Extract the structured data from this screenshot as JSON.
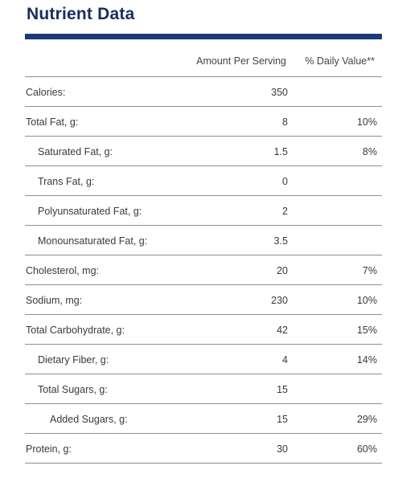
{
  "title": "Nutrient Data",
  "header": {
    "amount": "Amount Per Serving",
    "daily_value": "% Daily Value**"
  },
  "rows": [
    {
      "label": "Calories:",
      "amount": "350",
      "dv": "",
      "indent": 0
    },
    {
      "label": "Total Fat, g:",
      "amount": "8",
      "dv": "10%",
      "indent": 0
    },
    {
      "label": "Saturated Fat, g:",
      "amount": "1.5",
      "dv": "8%",
      "indent": 1
    },
    {
      "label": "Trans Fat, g:",
      "amount": "0",
      "dv": "",
      "indent": 1
    },
    {
      "label": "Polyunsaturated Fat, g:",
      "amount": "2",
      "dv": "",
      "indent": 1
    },
    {
      "label": "Monounsaturated Fat, g:",
      "amount": "3.5",
      "dv": "",
      "indent": 1
    },
    {
      "label": "Cholesterol, mg:",
      "amount": "20",
      "dv": "7%",
      "indent": 0
    },
    {
      "label": "Sodium, mg:",
      "amount": "230",
      "dv": "10%",
      "indent": 0
    },
    {
      "label": "Total Carbohydrate, g:",
      "amount": "42",
      "dv": "15%",
      "indent": 0
    },
    {
      "label": "Dietary Fiber, g:",
      "amount": "4",
      "dv": "14%",
      "indent": 1
    },
    {
      "label": "Total Sugars, g:",
      "amount": "15",
      "dv": "",
      "indent": 1
    },
    {
      "label": "Added Sugars, g:",
      "amount": "15",
      "dv": "29%",
      "indent": 2
    },
    {
      "label": "Protein, g:",
      "amount": "30",
      "dv": "60%",
      "indent": 0
    }
  ],
  "colors": {
    "title": "#1b2d5e",
    "accent_bar": "#1b3a7a",
    "rule": "#8f8f8f",
    "text": "#3a3a3a"
  }
}
